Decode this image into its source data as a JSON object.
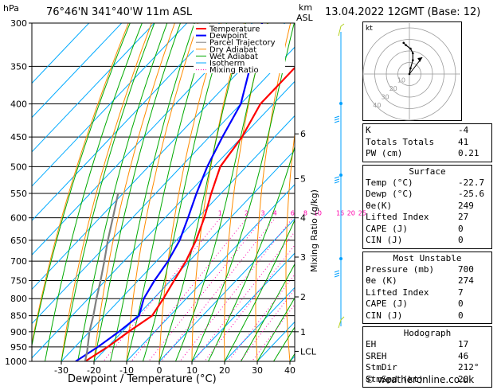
{
  "header": {
    "p_unit": "hPa",
    "location": "76°46'N  341°40'W  11m  ASL",
    "km_label": "km",
    "asl_label": "ASL",
    "datetime": "13.04.2022  12GMT  (Base: 12)"
  },
  "axes": {
    "xlabel": "Dewpoint / Temperature (°C)",
    "ylabel_right": "Mixing Ratio (g/kg)",
    "pressure_ticks": [
      300,
      350,
      400,
      450,
      500,
      550,
      600,
      650,
      700,
      750,
      800,
      850,
      900,
      950,
      1000
    ],
    "temp_ticks": [
      -30,
      -20,
      -10,
      0,
      10,
      20,
      30,
      40
    ],
    "height_km": [
      {
        "label": "1",
        "p": 900
      },
      {
        "label": "2",
        "p": 795
      },
      {
        "label": "3",
        "p": 690
      },
      {
        "label": "4",
        "p": 600
      },
      {
        "label": "5",
        "p": 522
      },
      {
        "label": "6",
        "p": 445
      },
      {
        "label": "LCL",
        "p": 965
      }
    ],
    "mixing_ratio_labels": [
      "1",
      "2",
      "3",
      "4",
      "6",
      "8",
      "10",
      "16",
      "20",
      "25"
    ]
  },
  "legend": [
    "Temperature",
    "Dewpoint",
    "Parcel Trajectory",
    "Dry Adiabat",
    "Wet Adiabat",
    "Isotherm",
    "Mixing Ratio"
  ],
  "colors": {
    "temperature": "#ff0000",
    "dewpoint": "#0000ff",
    "parcel": "#808080",
    "dry_adiabat": "#ff8c00",
    "wet_adiabat": "#00aa00",
    "isotherm": "#00aaff",
    "mixing_ratio": "#ff00aa",
    "wind": "#00a0ff"
  },
  "chart_data": {
    "type": "line",
    "p_range": [
      300,
      1000
    ],
    "t_range": [
      -40,
      40
    ],
    "series": [
      {
        "name": "Temperature",
        "points": [
          [
            1000,
            -22.7
          ],
          [
            950,
            -20
          ],
          [
            900,
            -18
          ],
          [
            850,
            -15.5
          ],
          [
            800,
            -17
          ],
          [
            750,
            -19
          ],
          [
            700,
            -21
          ],
          [
            650,
            -24
          ],
          [
            600,
            -28
          ],
          [
            550,
            -33
          ],
          [
            500,
            -38
          ],
          [
            450,
            -40
          ],
          [
            400,
            -44
          ],
          [
            350,
            -44
          ],
          [
            300,
            -42
          ]
        ]
      },
      {
        "name": "Dewpoint",
        "points": [
          [
            1000,
            -25.6
          ],
          [
            950,
            -23
          ],
          [
            900,
            -21
          ],
          [
            850,
            -19.5
          ],
          [
            800,
            -23
          ],
          [
            750,
            -25
          ],
          [
            700,
            -26.5
          ],
          [
            650,
            -29
          ],
          [
            600,
            -33
          ],
          [
            550,
            -37.5
          ],
          [
            500,
            -42
          ],
          [
            450,
            -46
          ],
          [
            400,
            -50
          ],
          [
            350,
            -58
          ],
          [
            300,
            -67
          ]
        ]
      },
      {
        "name": "Parcel Trajectory",
        "points": [
          [
            1000,
            -22.7
          ],
          [
            965,
            -25
          ],
          [
            900,
            -30
          ],
          [
            850,
            -33.5
          ],
          [
            800,
            -37.5
          ],
          [
            750,
            -41.5
          ],
          [
            700,
            -46
          ],
          [
            650,
            -51
          ],
          [
            600,
            -56
          ],
          [
            550,
            -61.5
          ]
        ]
      }
    ]
  },
  "hodograph": {
    "label": "kt",
    "ring_labels": [
      "10",
      "20",
      "30",
      "40"
    ],
    "points": [
      [
        0,
        0
      ],
      [
        1,
        5
      ],
      [
        3,
        12
      ],
      [
        3,
        18
      ],
      [
        1,
        22
      ],
      [
        -3,
        25
      ],
      [
        -5,
        27
      ]
    ],
    "storm": [
      7,
      9
    ]
  },
  "indices": {
    "top": [
      {
        "k": "K",
        "v": "-4"
      },
      {
        "k": "Totals Totals",
        "v": "41"
      },
      {
        "k": "PW (cm)",
        "v": "0.21"
      }
    ],
    "surface": {
      "title": "Surface",
      "rows": [
        {
          "k": "Temp (°C)",
          "v": "-22.7"
        },
        {
          "k": "Dewp (°C)",
          "v": "-25.6"
        },
        {
          "k": "θe(K)",
          "v": "249"
        },
        {
          "k": "Lifted Index",
          "v": "27"
        },
        {
          "k": "CAPE (J)",
          "v": "0"
        },
        {
          "k": "CIN (J)",
          "v": "0"
        }
      ]
    },
    "most_unstable": {
      "title": "Most Unstable",
      "rows": [
        {
          "k": "Pressure (mb)",
          "v": "700"
        },
        {
          "k": "θe (K)",
          "v": "274"
        },
        {
          "k": "Lifted Index",
          "v": "7"
        },
        {
          "k": "CAPE (J)",
          "v": "0"
        },
        {
          "k": "CIN (J)",
          "v": "0"
        }
      ]
    },
    "hodograph": {
      "title": "Hodograph",
      "rows": [
        {
          "k": "EH",
          "v": "17"
        },
        {
          "k": "SREH",
          "v": "46"
        },
        {
          "k": "StmDir",
          "v": "212°"
        },
        {
          "k": "StmSpd (kt)",
          "v": "20"
        }
      ]
    }
  },
  "footer": "© weatheronline.co.uk"
}
